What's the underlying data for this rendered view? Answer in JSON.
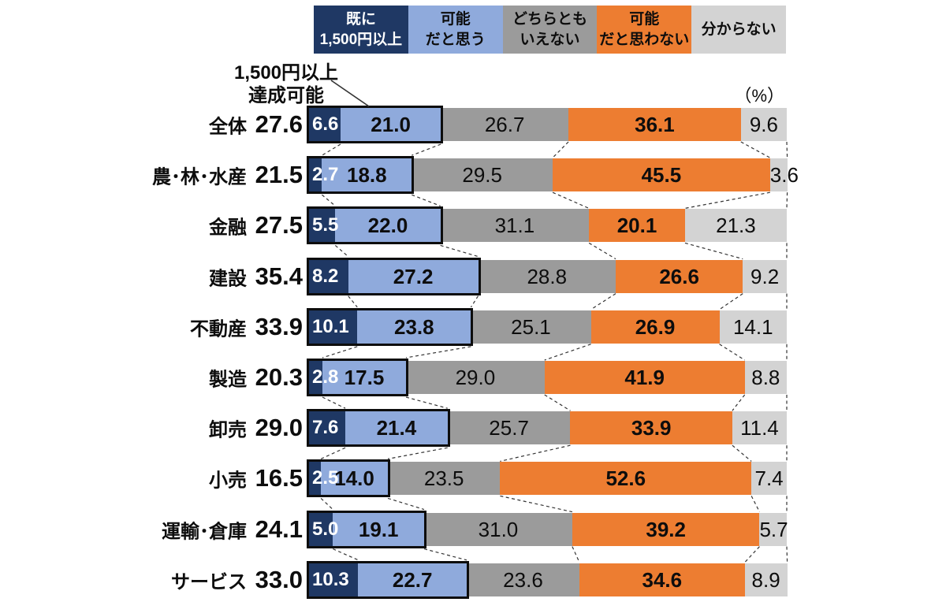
{
  "page": {
    "background": "#ffffff"
  },
  "chart_data": {
    "type": "bar",
    "orientation": "horizontal-stacked",
    "unit_label": "（%）",
    "xlim": [
      0,
      100
    ],
    "grid": false,
    "legend_position": "top",
    "annotation": {
      "line1": "1,500円以上",
      "line2": "達成可能"
    },
    "colors": {
      "already_over_1500": "#1F3864",
      "think_possible": "#8FAADC",
      "neither": "#9B9B9B",
      "think_not_possible": "#ED7D31",
      "dont_know": "#D3D3D3",
      "highlight_border": "#0d0d0d",
      "connector": "#333333"
    },
    "legend": [
      {
        "line1": "既に",
        "line2": "1,500円以上",
        "color": "#1F3864",
        "text_color": "#ffffff"
      },
      {
        "line1": "可能",
        "line2": "だと思う",
        "color": "#8FAADC",
        "text_color": "#0d0d0d"
      },
      {
        "line1": "どちらとも",
        "line2": "いえない",
        "color": "#9B9B9B",
        "text_color": "#0d0d0d"
      },
      {
        "line1": "可能",
        "line2": "だと思わない",
        "color": "#ED7D31",
        "text_color": "#0d0d0d"
      },
      {
        "line1": "分からない",
        "line2": "",
        "color": "#D3D3D3",
        "text_color": "#0d0d0d"
      }
    ],
    "series_names": [
      "既に1,500円以上",
      "可能だと思う",
      "どちらともいえない",
      "可能だと思わない",
      "分からない"
    ],
    "rows": [
      {
        "category": "全体",
        "total": "27.6",
        "values": [
          6.6,
          21.0,
          26.7,
          36.1,
          9.6
        ],
        "labels": [
          "6.6",
          "21.0",
          "26.7",
          "36.1",
          "9.6"
        ]
      },
      {
        "category": "農･林･水産",
        "total": "21.5",
        "values": [
          2.7,
          18.8,
          29.5,
          45.5,
          3.6
        ],
        "labels": [
          "2.7",
          "18.8",
          "29.5",
          "45.5",
          "3.6"
        ]
      },
      {
        "category": "金融",
        "total": "27.5",
        "values": [
          5.5,
          22.0,
          31.1,
          20.1,
          21.3
        ],
        "labels": [
          "5.5",
          "22.0",
          "31.1",
          "20.1",
          "21.3"
        ]
      },
      {
        "category": "建設",
        "total": "35.4",
        "values": [
          8.2,
          27.2,
          28.8,
          26.6,
          9.2
        ],
        "labels": [
          "8.2",
          "27.2",
          "28.8",
          "26.6",
          "9.2"
        ]
      },
      {
        "category": "不動産",
        "total": "33.9",
        "values": [
          10.1,
          23.8,
          25.1,
          26.9,
          14.1
        ],
        "labels": [
          "10.1",
          "23.8",
          "25.1",
          "26.9",
          "14.1"
        ]
      },
      {
        "category": "製造",
        "total": "20.3",
        "values": [
          2.8,
          17.5,
          29.0,
          41.9,
          8.8
        ],
        "labels": [
          "2.8",
          "17.5",
          "29.0",
          "41.9",
          "8.8"
        ]
      },
      {
        "category": "卸売",
        "total": "29.0",
        "values": [
          7.6,
          21.4,
          25.7,
          33.9,
          11.4
        ],
        "labels": [
          "7.6",
          "21.4",
          "25.7",
          "33.9",
          "11.4"
        ]
      },
      {
        "category": "小売",
        "total": "16.5",
        "values": [
          2.5,
          14.0,
          23.5,
          52.6,
          7.4
        ],
        "labels": [
          "2.5",
          "14.0",
          "23.5",
          "52.6",
          "7.4"
        ]
      },
      {
        "category": "運輸･倉庫",
        "total": "24.1",
        "values": [
          5.0,
          19.1,
          31.0,
          39.2,
          5.7
        ],
        "labels": [
          "5.0",
          "19.1",
          "31.0",
          "39.2",
          "5.7"
        ]
      },
      {
        "category": "サービス",
        "total": "33.0",
        "values": [
          10.3,
          22.7,
          23.6,
          34.6,
          8.9
        ],
        "labels": [
          "10.3",
          "22.7",
          "23.6",
          "34.6",
          "8.9"
        ]
      }
    ]
  }
}
